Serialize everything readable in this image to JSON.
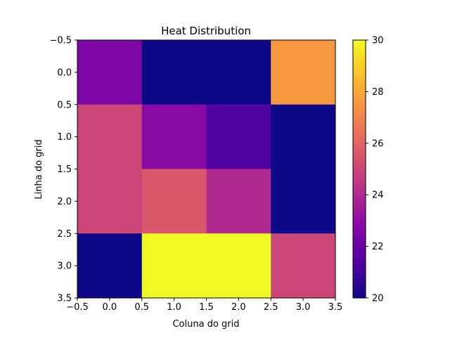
{
  "chart_data": {
    "type": "heatmap",
    "title": "Heat Distribution",
    "xlabel": "Coluna do grid",
    "ylabel": "Linha do grid",
    "xlim": [
      -0.5,
      3.5
    ],
    "ylim": [
      3.5,
      -0.5
    ],
    "x_ticks": [
      -0.5,
      0.0,
      0.5,
      1.0,
      1.5,
      2.0,
      2.5,
      3.0,
      3.5
    ],
    "x_tick_labels": [
      "−0.5",
      "0.0",
      "0.5",
      "1.0",
      "1.5",
      "2.0",
      "2.5",
      "3.0",
      "3.5"
    ],
    "y_ticks": [
      -0.5,
      0.0,
      0.5,
      1.0,
      1.5,
      2.0,
      2.5,
      3.0,
      3.5
    ],
    "y_tick_labels": [
      "−0.5",
      "0.0",
      "0.5",
      "1.0",
      "1.5",
      "2.0",
      "2.5",
      "3.0",
      "3.5"
    ],
    "rows": [
      0,
      1,
      2,
      3
    ],
    "columns": [
      0,
      1,
      2,
      3
    ],
    "values": [
      [
        22.5,
        20.0,
        20.0,
        27.6
      ],
      [
        25.0,
        22.8,
        21.4,
        20.0
      ],
      [
        25.0,
        25.6,
        24.0,
        20.0
      ],
      [
        20.0,
        30.0,
        30.0,
        25.0
      ]
    ],
    "colormap": "plasma",
    "colorbar": {
      "vmin": 20,
      "vmax": 30,
      "ticks": [
        20,
        22,
        24,
        26,
        28,
        30
      ],
      "tick_labels": [
        "20",
        "22",
        "24",
        "26",
        "28",
        "30"
      ]
    },
    "grid": false
  }
}
